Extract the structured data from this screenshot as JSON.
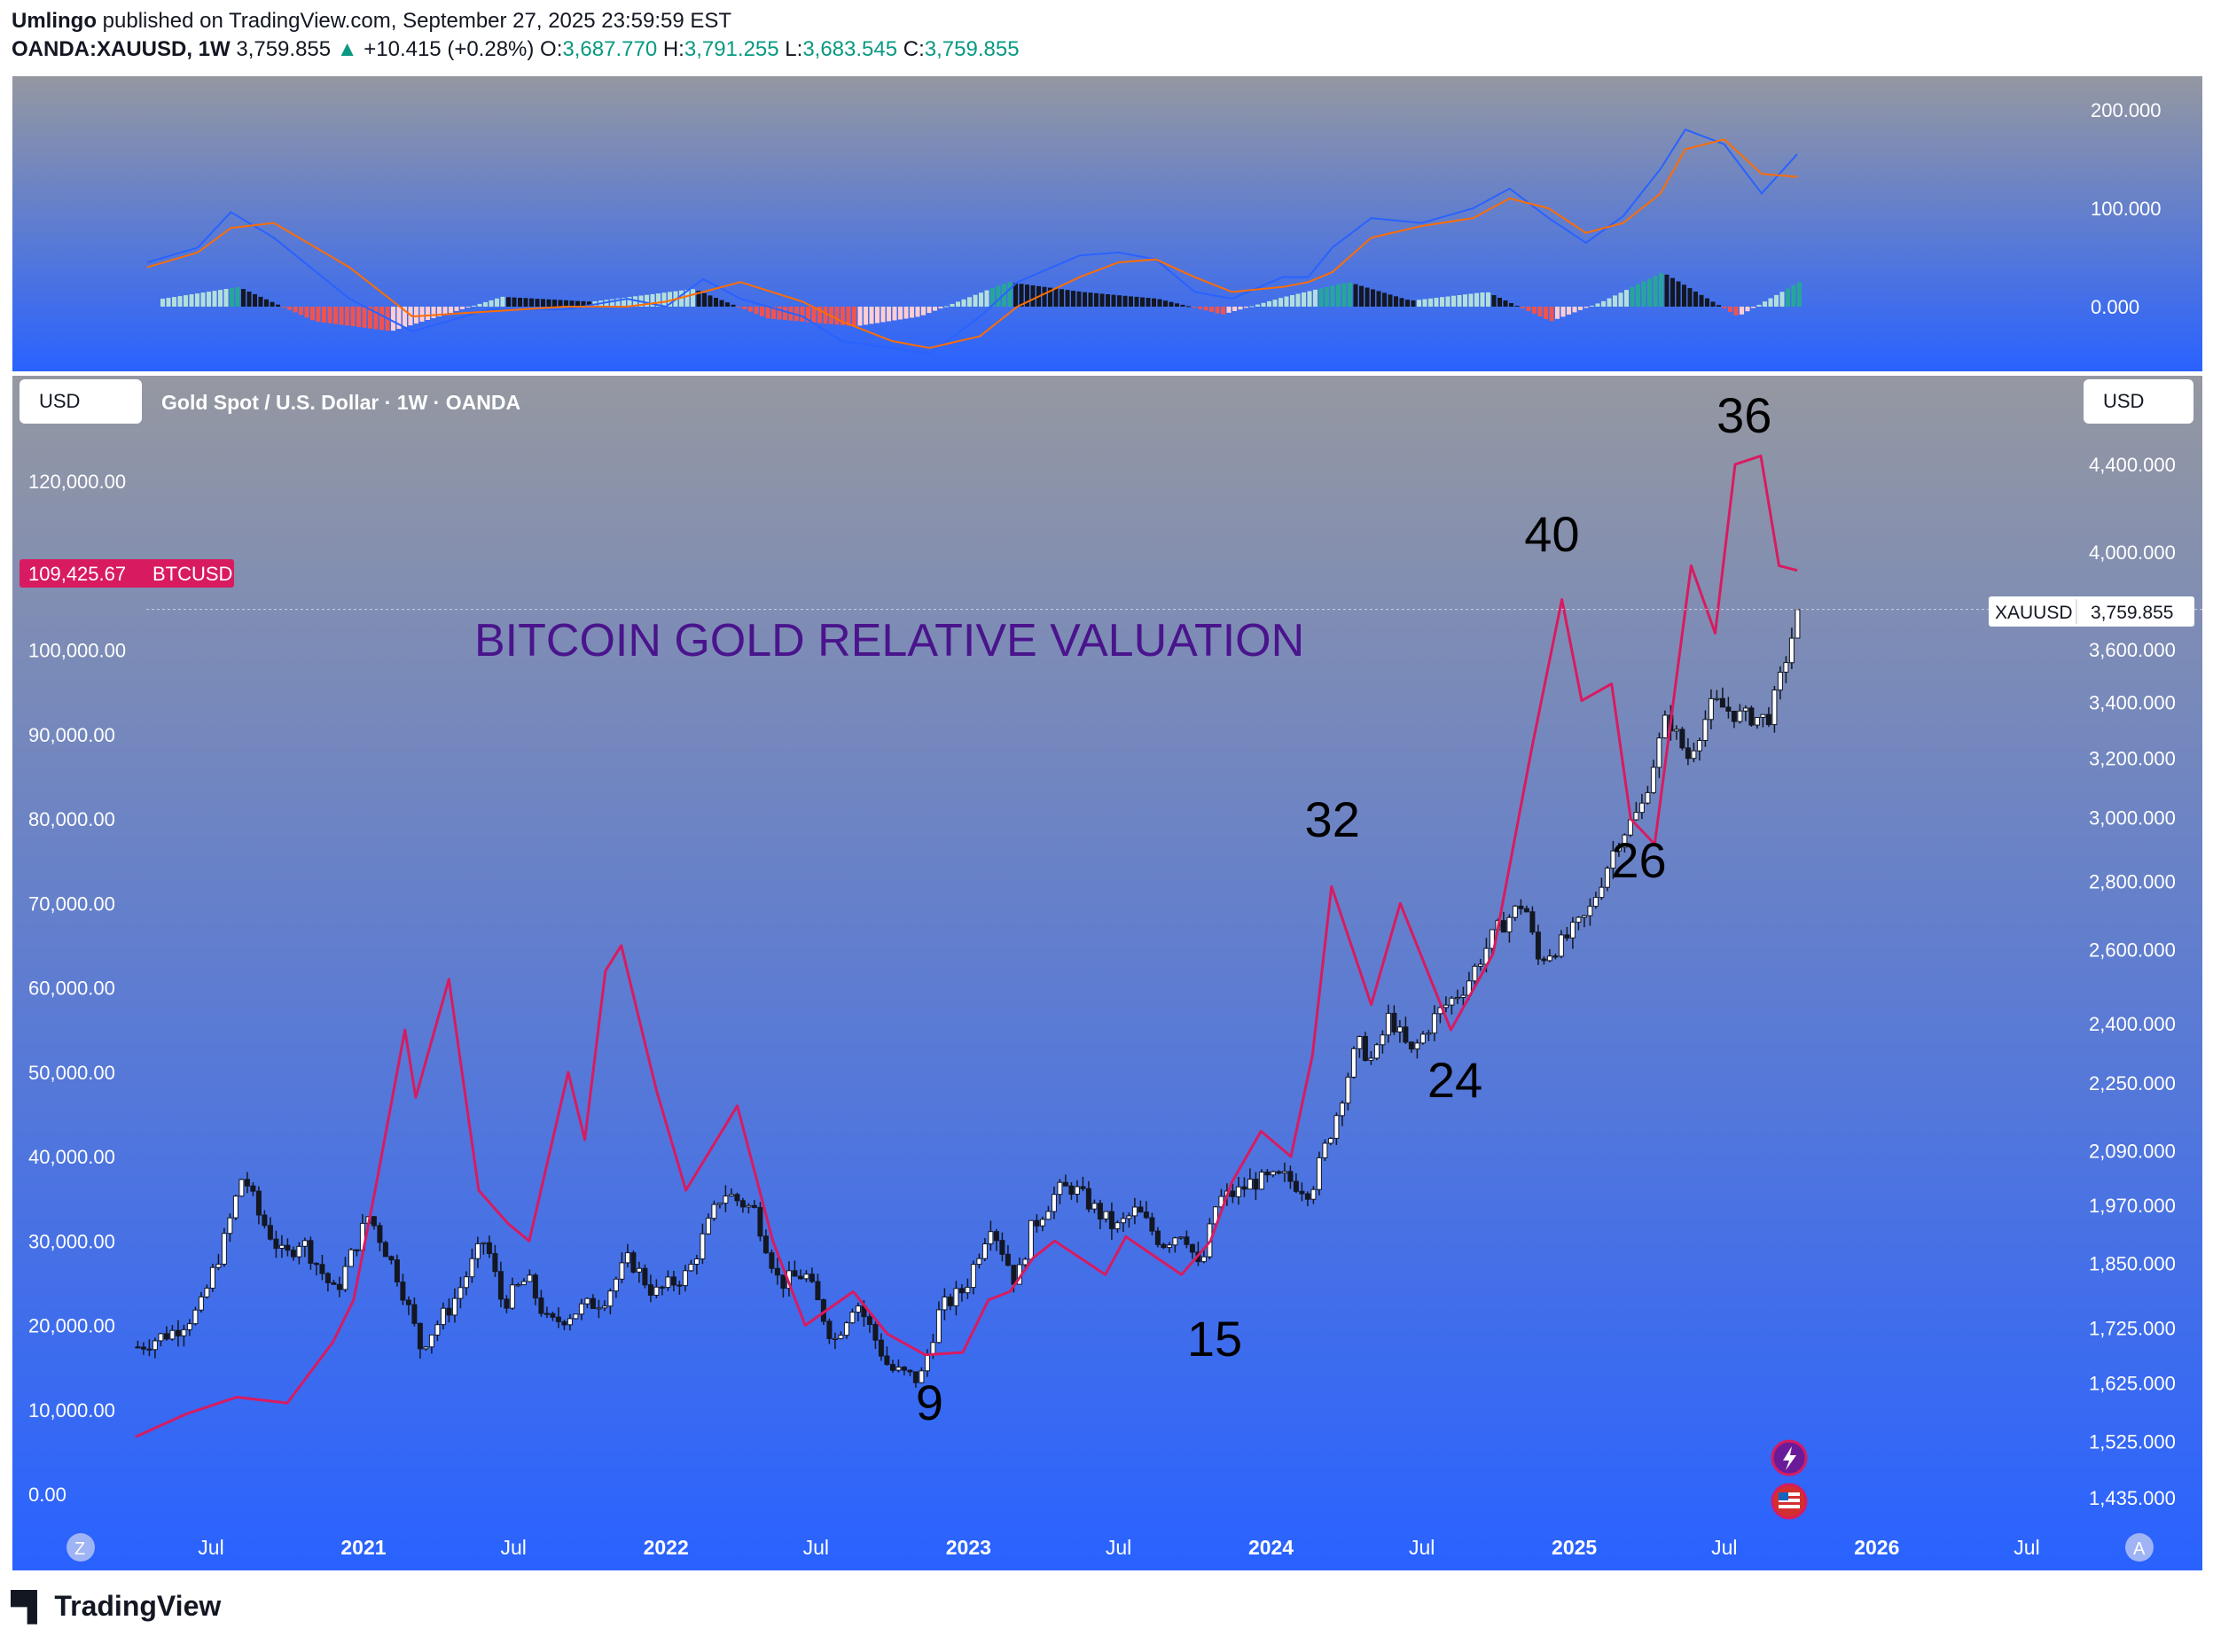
{
  "header": {
    "author": "Umlingo",
    "published": "published on TradingView.com, September 27, 2025 23:59:59 EST",
    "symbol": "OANDA:XAUUSD, 1W",
    "last": "3,759.855",
    "arrow": "▲",
    "change": "+10.415 (+0.28%)",
    "o_label": "O:",
    "o_value": "3,687.770",
    "h_label": "H:",
    "h_value": "3,791.255",
    "l_label": "L:",
    "l_value": "3,683.545",
    "c_label": "C:",
    "c_value": "3,759.855"
  },
  "main": {
    "legend": "Gold Spot / U.S. Dollar · 1W · OANDA",
    "left_currency": "USD",
    "right_currency": "USD",
    "annotation_title": "BITCOIN GOLD RELATIVE VALUATION",
    "btc_tag_value": "109,425.67",
    "btc_tag_label": "BTCUSD",
    "xau_tag_label": "XAUUSD",
    "xau_tag_value": "3,759.855",
    "ratio_labels": [
      {
        "text": "9",
        "date": "2022-11-15"
      },
      {
        "text": "15",
        "date": "2023-10-25"
      },
      {
        "text": "32",
        "date": "2024-03-15"
      },
      {
        "text": "24",
        "date": "2024-08-10"
      },
      {
        "text": "40",
        "date": "2024-12-05"
      },
      {
        "text": "26",
        "date": "2025-03-20"
      },
      {
        "text": "36",
        "date": "2025-07-25"
      }
    ]
  },
  "footer": {
    "brand": "TradingView"
  },
  "colors": {
    "btc_line": "#d81b60",
    "macd_fast": "#2962ff",
    "macd_slow": "#ff6d00",
    "hist_up_strong": "#26a69a",
    "hist_up_weak": "#b2dfdb",
    "hist_down_weak": "#ffcdd2",
    "title_text": "#4a148c",
    "bg_top": "#9598a1",
    "bg_bottom": "#2962ff"
  },
  "icons": {
    "left_scale": "z-circle-icon",
    "right_scale": "a-circle-icon",
    "events_flash": "lightning-event-icon",
    "events_flag": "us-flag-event-icon"
  },
  "chart_data": [
    {
      "type": "line",
      "title": "",
      "series": [
        {
          "name": "macd",
          "points": [
            [
              "2020-04-15",
              45
            ],
            [
              "2020-06-15",
              60
            ],
            [
              "2020-07-25",
              96
            ],
            [
              "2020-09-15",
              70
            ],
            [
              "2020-12-15",
              8
            ],
            [
              "2021-03-01",
              -25
            ],
            [
              "2021-06-01",
              -3
            ],
            [
              "2021-09-01",
              -3
            ],
            [
              "2021-11-15",
              8
            ],
            [
              "2022-01-01",
              0
            ],
            [
              "2022-02-15",
              28
            ],
            [
              "2022-04-01",
              8
            ],
            [
              "2022-06-15",
              -10
            ],
            [
              "2022-08-01",
              -35
            ],
            [
              "2022-10-01",
              -42
            ],
            [
              "2022-11-15",
              -48
            ],
            [
              "2023-01-15",
              -10
            ],
            [
              "2023-03-01",
              25
            ],
            [
              "2023-05-15",
              52
            ],
            [
              "2023-07-01",
              55
            ],
            [
              "2023-08-15",
              48
            ],
            [
              "2023-10-01",
              15
            ],
            [
              "2023-11-15",
              8
            ],
            [
              "2024-01-15",
              30
            ],
            [
              "2024-02-15",
              30
            ],
            [
              "2024-03-15",
              60
            ],
            [
              "2024-05-01",
              90
            ],
            [
              "2024-07-01",
              85
            ],
            [
              "2024-09-01",
              100
            ],
            [
              "2024-10-15",
              120
            ],
            [
              "2024-12-01",
              90
            ],
            [
              "2025-01-15",
              65
            ],
            [
              "2025-03-01",
              92
            ],
            [
              "2025-04-15",
              140
            ],
            [
              "2025-05-15",
              180
            ],
            [
              "2025-07-01",
              165
            ],
            [
              "2025-08-15",
              115
            ],
            [
              "2025-09-27",
              155
            ]
          ]
        },
        {
          "name": "signal",
          "points": [
            [
              "2020-04-15",
              40
            ],
            [
              "2020-06-15",
              55
            ],
            [
              "2020-07-25",
              80
            ],
            [
              "2020-09-15",
              85
            ],
            [
              "2020-12-15",
              40
            ],
            [
              "2021-03-01",
              -10
            ],
            [
              "2021-06-01",
              -5
            ],
            [
              "2021-09-01",
              0
            ],
            [
              "2021-11-15",
              0
            ],
            [
              "2022-01-01",
              5
            ],
            [
              "2022-02-15",
              15
            ],
            [
              "2022-04-01",
              25
            ],
            [
              "2022-06-15",
              5
            ],
            [
              "2022-08-01",
              -15
            ],
            [
              "2022-10-01",
              -35
            ],
            [
              "2022-11-15",
              -42
            ],
            [
              "2023-01-15",
              -30
            ],
            [
              "2023-03-01",
              0
            ],
            [
              "2023-05-15",
              30
            ],
            [
              "2023-07-01",
              45
            ],
            [
              "2023-08-15",
              48
            ],
            [
              "2023-10-01",
              30
            ],
            [
              "2023-11-15",
              15
            ],
            [
              "2024-01-15",
              20
            ],
            [
              "2024-02-15",
              25
            ],
            [
              "2024-03-15",
              35
            ],
            [
              "2024-05-01",
              70
            ],
            [
              "2024-07-01",
              82
            ],
            [
              "2024-09-01",
              90
            ],
            [
              "2024-10-15",
              110
            ],
            [
              "2024-12-01",
              100
            ],
            [
              "2025-01-15",
              75
            ],
            [
              "2025-03-01",
              85
            ],
            [
              "2025-04-15",
              115
            ],
            [
              "2025-05-15",
              160
            ],
            [
              "2025-07-01",
              170
            ],
            [
              "2025-08-15",
              135
            ],
            [
              "2025-09-27",
              132
            ]
          ]
        }
      ],
      "histogram": [
        [
          "2020-05-01",
          8
        ],
        [
          "2020-08-01",
          20
        ],
        [
          "2020-11-01",
          -15
        ],
        [
          "2021-02-01",
          -25
        ],
        [
          "2021-06-15",
          10
        ],
        [
          "2021-10-01",
          5
        ],
        [
          "2022-02-01",
          18
        ],
        [
          "2022-05-01",
          -12
        ],
        [
          "2022-08-15",
          -20
        ],
        [
          "2022-11-01",
          -10
        ],
        [
          "2023-02-15",
          25
        ],
        [
          "2023-05-15",
          15
        ],
        [
          "2023-08-15",
          8
        ],
        [
          "2023-11-01",
          -8
        ],
        [
          "2024-01-15",
          10
        ],
        [
          "2024-04-01",
          25
        ],
        [
          "2024-06-15",
          6
        ],
        [
          "2024-09-15",
          15
        ],
        [
          "2024-12-01",
          -15
        ],
        [
          "2025-02-01",
          5
        ],
        [
          "2025-04-15",
          35
        ],
        [
          "2025-07-15",
          -10
        ],
        [
          "2025-09-27",
          25
        ]
      ],
      "y_ticks": [
        "200.000",
        "100.000",
        "0.000"
      ],
      "ylim": [
        -60,
        210
      ]
    },
    {
      "type": "candlestick",
      "title": "Gold Spot / U.S. Dollar · 1W · OANDA",
      "x_ticks": [
        "Jul",
        "2021",
        "Jul",
        "2022",
        "Jul",
        "2023",
        "Jul",
        "2024",
        "Jul",
        "2025",
        "Jul",
        "2026",
        "Jul"
      ],
      "y_right_ticks": [
        "4,400.000",
        "4,000.000",
        "3,600.000",
        "3,400.000",
        "3,200.000",
        "3,000.000",
        "2,800.000",
        "2,600.000",
        "2,400.000",
        "2,250.000",
        "2,090.000",
        "1,970.000",
        "1,850.000",
        "1,725.000",
        "1,625.000",
        "1,525.000",
        "1,435.000"
      ],
      "y_right_scale": "log",
      "y_left_ticks": [
        "120,000.00",
        "100,000.00",
        "90,000.00",
        "80,000.00",
        "70,000.00",
        "60,000.00",
        "50,000.00",
        "40,000.00",
        "30,000.00",
        "20,000.00",
        "10,000.00",
        "0.00"
      ],
      "series": [
        {
          "name": "XAUUSD",
          "close": [
            [
              "2020-04-01",
              1690
            ],
            [
              "2020-05-15",
              1720
            ],
            [
              "2020-06-15",
              1760
            ],
            [
              "2020-07-15",
              1900
            ],
            [
              "2020-08-06",
              2040
            ],
            [
              "2020-08-25",
              1950
            ],
            [
              "2020-09-25",
              1860
            ],
            [
              "2020-10-15",
              1900
            ],
            [
              "2020-11-25",
              1790
            ],
            [
              "2021-01-05",
              1950
            ],
            [
              "2021-02-10",
              1820
            ],
            [
              "2021-03-08",
              1690
            ],
            [
              "2021-04-15",
              1770
            ],
            [
              "2021-05-25",
              1900
            ],
            [
              "2021-06-15",
              1770
            ],
            [
              "2021-07-15",
              1820
            ],
            [
              "2021-08-10",
              1730
            ],
            [
              "2021-09-15",
              1760
            ],
            [
              "2021-10-15",
              1780
            ],
            [
              "2021-11-15",
              1860
            ],
            [
              "2021-12-15",
              1790
            ],
            [
              "2022-01-25",
              1830
            ],
            [
              "2022-03-08",
              2000
            ],
            [
              "2022-04-15",
              1960
            ],
            [
              "2022-05-15",
              1810
            ],
            [
              "2022-06-15",
              1830
            ],
            [
              "2022-07-20",
              1700
            ],
            [
              "2022-08-15",
              1780
            ],
            [
              "2022-09-25",
              1650
            ],
            [
              "2022-11-01",
              1630
            ],
            [
              "2022-11-25",
              1760
            ],
            [
              "2022-12-25",
              1800
            ],
            [
              "2023-01-25",
              1935
            ],
            [
              "2023-02-25",
              1810
            ],
            [
              "2023-03-15",
              1920
            ],
            [
              "2023-04-15",
              2000
            ],
            [
              "2023-05-04",
              2010
            ],
            [
              "2023-06-01",
              1960
            ],
            [
              "2023-06-25",
              1920
            ],
            [
              "2023-07-20",
              1960
            ],
            [
              "2023-08-20",
              1890
            ],
            [
              "2023-09-15",
              1920
            ],
            [
              "2023-10-05",
              1830
            ],
            [
              "2023-10-25",
              1980
            ],
            [
              "2023-11-20",
              2000
            ],
            [
              "2023-12-05",
              2020
            ],
            [
              "2024-01-15",
              2030
            ],
            [
              "2024-02-15",
              2000
            ],
            [
              "2024-03-15",
              2160
            ],
            [
              "2024-04-12",
              2350
            ],
            [
              "2024-05-01",
              2300
            ],
            [
              "2024-05-20",
              2420
            ],
            [
              "2024-06-15",
              2320
            ],
            [
              "2024-07-15",
              2420
            ],
            [
              "2024-08-20",
              2500
            ],
            [
              "2024-09-25",
              2650
            ],
            [
              "2024-10-30",
              2740
            ],
            [
              "2024-11-15",
              2570
            ],
            [
              "2024-12-15",
              2620
            ],
            [
              "2025-01-15",
              2700
            ],
            [
              "2025-02-20",
              2930
            ],
            [
              "2025-03-20",
              3030
            ],
            [
              "2025-04-20",
              3350
            ],
            [
              "2025-05-15",
              3200
            ],
            [
              "2025-06-15",
              3400
            ],
            [
              "2025-07-15",
              3350
            ],
            [
              "2025-08-20",
              3340
            ],
            [
              "2025-09-01",
              3450
            ],
            [
              "2025-09-27",
              3759.855
            ]
          ]
        },
        {
          "name": "BTCUSD",
          "close": [
            [
              "2020-04-01",
              6800
            ],
            [
              "2020-06-01",
              9500
            ],
            [
              "2020-08-01",
              11500
            ],
            [
              "2020-10-01",
              10800
            ],
            [
              "2020-11-25",
              18000
            ],
            [
              "2020-12-20",
              23000
            ],
            [
              "2021-01-15",
              36000
            ],
            [
              "2021-02-20",
              55000
            ],
            [
              "2021-03-05",
              47000
            ],
            [
              "2021-04-14",
              61000
            ],
            [
              "2021-05-20",
              36000
            ],
            [
              "2021-06-25",
              32000
            ],
            [
              "2021-07-20",
              30000
            ],
            [
              "2021-09-05",
              50000
            ],
            [
              "2021-09-25",
              42000
            ],
            [
              "2021-10-20",
              62000
            ],
            [
              "2021-11-08",
              65000
            ],
            [
              "2021-12-20",
              48000
            ],
            [
              "2022-01-25",
              36000
            ],
            [
              "2022-03-28",
              46000
            ],
            [
              "2022-05-10",
              30000
            ],
            [
              "2022-06-18",
              20000
            ],
            [
              "2022-08-15",
              24000
            ],
            [
              "2022-09-25",
              19000
            ],
            [
              "2022-11-10",
              16500
            ],
            [
              "2022-12-25",
              16800
            ],
            [
              "2023-01-25",
              23000
            ],
            [
              "2023-02-20",
              24000
            ],
            [
              "2023-03-20",
              28000
            ],
            [
              "2023-04-15",
              30000
            ],
            [
              "2023-06-15",
              26000
            ],
            [
              "2023-07-10",
              30500
            ],
            [
              "2023-09-15",
              26000
            ],
            [
              "2023-10-20",
              30000
            ],
            [
              "2023-11-15",
              37000
            ],
            [
              "2023-12-20",
              43000
            ],
            [
              "2024-01-25",
              40000
            ],
            [
              "2024-02-20",
              52000
            ],
            [
              "2024-03-14",
              72000
            ],
            [
              "2024-05-01",
              58000
            ],
            [
              "2024-06-05",
              70000
            ],
            [
              "2024-08-05",
              55000
            ],
            [
              "2024-09-25",
              64000
            ],
            [
              "2024-11-10",
              88000
            ],
            [
              "2024-12-17",
              106000
            ],
            [
              "2025-01-10",
              94000
            ],
            [
              "2025-02-15",
              96000
            ],
            [
              "2025-03-10",
              80000
            ],
            [
              "2025-04-08",
              77000
            ],
            [
              "2025-05-22",
              110000
            ],
            [
              "2025-06-20",
              102000
            ],
            [
              "2025-07-14",
              122000
            ],
            [
              "2025-08-14",
              123000
            ],
            [
              "2025-09-05",
              110000
            ],
            [
              "2025-09-27",
              109425.67
            ]
          ]
        }
      ]
    }
  ]
}
